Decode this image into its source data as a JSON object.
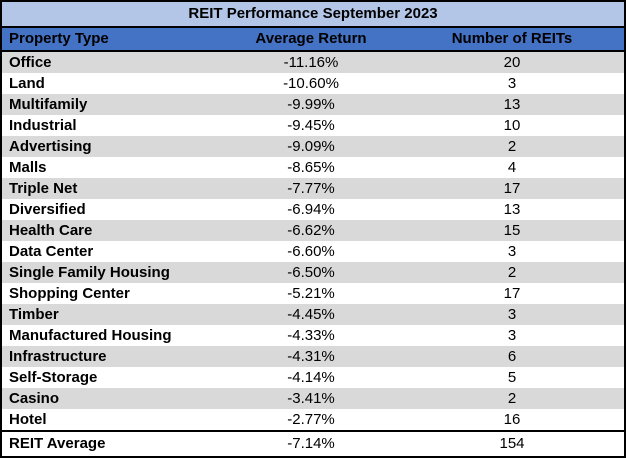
{
  "chart_data": {
    "type": "table",
    "title": "REIT Performance September 2023",
    "columns": [
      "Property Type",
      "Average Return",
      "Number of REITs"
    ],
    "rows": [
      [
        "Office",
        "-11.16%",
        "20"
      ],
      [
        "Land",
        "-10.60%",
        "3"
      ],
      [
        "Multifamily",
        "-9.99%",
        "13"
      ],
      [
        "Industrial",
        "-9.45%",
        "10"
      ],
      [
        "Advertising",
        "-9.09%",
        "2"
      ],
      [
        "Malls",
        "-8.65%",
        "4"
      ],
      [
        "Triple Net",
        "-7.77%",
        "17"
      ],
      [
        "Diversified",
        "-6.94%",
        "13"
      ],
      [
        "Health Care",
        "-6.62%",
        "15"
      ],
      [
        "Data Center",
        "-6.60%",
        "3"
      ],
      [
        "Single Family Housing",
        "-6.50%",
        "2"
      ],
      [
        "Shopping Center",
        "-5.21%",
        "17"
      ],
      [
        "Timber",
        "-4.45%",
        "3"
      ],
      [
        "Manufactured Housing",
        "-4.33%",
        "3"
      ],
      [
        "Infrastructure",
        "-4.31%",
        "6"
      ],
      [
        "Self-Storage",
        "-4.14%",
        "5"
      ],
      [
        "Casino",
        "-3.41%",
        "2"
      ],
      [
        "Hotel",
        "-2.77%",
        "16"
      ]
    ],
    "summary_row": [
      "REIT Average",
      "-7.14%",
      "154"
    ],
    "layout": {
      "striped": true,
      "first_data_row_striped": true,
      "column_alignment": [
        "left",
        "center",
        "center"
      ]
    }
  },
  "colors": {
    "title_bg": "#B4C6E7",
    "header_bg": "#4472C4",
    "stripe_bg": "#D9D9D9",
    "row_bg": "#FFFFFF",
    "border": "#000000",
    "text": "#000000"
  }
}
